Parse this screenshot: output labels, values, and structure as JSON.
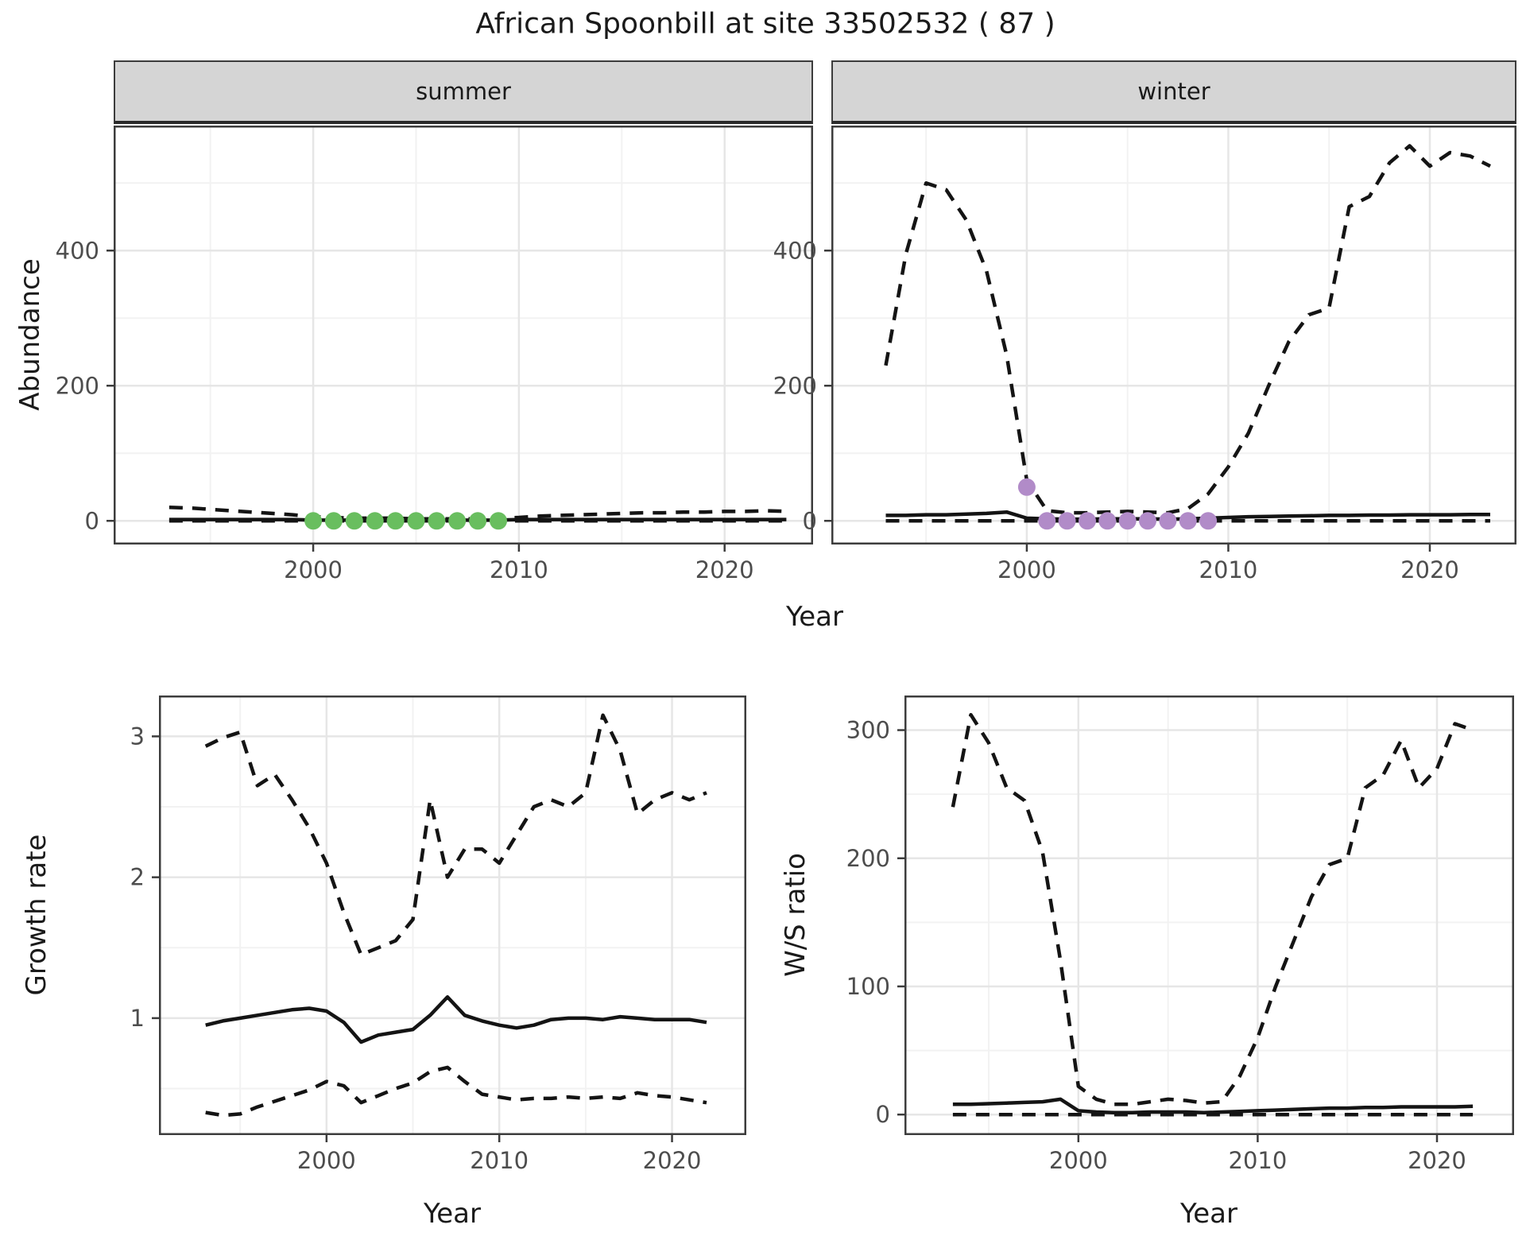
{
  "title": "African Spoonbill at site 33502532 ( 87 )",
  "colors": {
    "line": "#141414",
    "grid_major": "#e6e6e6",
    "grid_minor": "#f2f2f2",
    "panel_border": "#3c3c3c",
    "strip_bg": "#d5d5d5",
    "axis_text": "#4d4d4d",
    "title_text": "#1a1a1a",
    "point_summer": "#69be5f",
    "point_winter": "#b18bc8"
  },
  "chart_data": [
    {
      "id": "abundance-summer",
      "type": "line",
      "facet_label": "summer",
      "xlabel": "Year",
      "ylabel": "Abundance",
      "xlim": [
        1990.3,
        2024.3
      ],
      "ylim": [
        -35,
        585
      ],
      "xticks": [
        2000,
        2010,
        2020
      ],
      "xticks_minor": [
        1995,
        2005,
        2015
      ],
      "yticks": [
        0,
        200,
        400
      ],
      "yticks_minor": [
        100,
        300,
        500
      ],
      "grid": true,
      "x": [
        1993,
        1994,
        1995,
        1996,
        1997,
        1998,
        1999,
        2000,
        2001,
        2002,
        2003,
        2004,
        2005,
        2006,
        2007,
        2008,
        2009,
        2010,
        2011,
        2012,
        2013,
        2014,
        2015,
        2016,
        2017,
        2018,
        2019,
        2020,
        2021,
        2022,
        2023
      ],
      "series": [
        {
          "name": "estimate",
          "style": "solid",
          "values": [
            2,
            2,
            2,
            2,
            2,
            2,
            2,
            1,
            1,
            1,
            1,
            1,
            1,
            1,
            1,
            1,
            1,
            2,
            2,
            2,
            2,
            2,
            2,
            2,
            2,
            2,
            2,
            2,
            2,
            2,
            2
          ]
        },
        {
          "name": "upper CI",
          "style": "dashed",
          "values": [
            20,
            19,
            17,
            15,
            13,
            11,
            9,
            6,
            5,
            4,
            4,
            4,
            3,
            3,
            3,
            3,
            4,
            5,
            7,
            8,
            9,
            10,
            11,
            12,
            12,
            13,
            13,
            14,
            14,
            15,
            14
          ]
        },
        {
          "name": "lower CI",
          "style": "dashed",
          "values": [
            0,
            0,
            0,
            0,
            0,
            0,
            0,
            0,
            0,
            0,
            0,
            0,
            0,
            0,
            0,
            0,
            0,
            0,
            0,
            0,
            0,
            0,
            0,
            0,
            0,
            0,
            0,
            0,
            0,
            0,
            0
          ]
        }
      ],
      "points": {
        "name": "observed counts",
        "color": "#69be5f",
        "x": [
          2000,
          2001,
          2002,
          2003,
          2004,
          2005,
          2006,
          2007,
          2008,
          2009
        ],
        "y": [
          0,
          0,
          0,
          0,
          0,
          0,
          0,
          0,
          0,
          0
        ]
      }
    },
    {
      "id": "abundance-winter",
      "type": "line",
      "facet_label": "winter",
      "xlabel": "Year",
      "ylabel": "Abundance",
      "xlim": [
        1990.3,
        2024.3
      ],
      "ylim": [
        -35,
        585
      ],
      "xticks": [
        2000,
        2010,
        2020
      ],
      "xticks_minor": [
        1995,
        2005,
        2015
      ],
      "yticks": [
        0,
        200,
        400
      ],
      "yticks_minor": [
        100,
        300,
        500
      ],
      "grid": true,
      "x": [
        1993,
        1994,
        1995,
        1996,
        1997,
        1998,
        1999,
        2000,
        2001,
        2002,
        2003,
        2004,
        2005,
        2006,
        2007,
        2008,
        2009,
        2010,
        2011,
        2012,
        2013,
        2014,
        2015,
        2016,
        2017,
        2018,
        2019,
        2020,
        2021,
        2022,
        2023
      ],
      "series": [
        {
          "name": "estimate",
          "style": "solid",
          "values": [
            8,
            8,
            9,
            9,
            10,
            11,
            13,
            4,
            3,
            2.5,
            2.5,
            3,
            3,
            3,
            2.5,
            3,
            4,
            5,
            6,
            6.5,
            7,
            7.5,
            8,
            8,
            8.5,
            8.5,
            9,
            9,
            9,
            9.5,
            9.5
          ]
        },
        {
          "name": "upper CI",
          "style": "dashed",
          "values": [
            230,
            395,
            500,
            490,
            445,
            370,
            245,
            60,
            15,
            12,
            12,
            13,
            14,
            13,
            12,
            18,
            40,
            80,
            130,
            200,
            265,
            305,
            315,
            465,
            480,
            530,
            555,
            525,
            545,
            540,
            525
          ]
        },
        {
          "name": "lower CI",
          "style": "dashed",
          "values": [
            0,
            0,
            0,
            0,
            0,
            0,
            0,
            0,
            0,
            0,
            0,
            0,
            0,
            0,
            0,
            0,
            0,
            0,
            0,
            0,
            0,
            0,
            0,
            0,
            0,
            0,
            0,
            0,
            0,
            0,
            0
          ]
        }
      ],
      "points": {
        "name": "observed counts",
        "color": "#b18bc8",
        "x": [
          2000,
          2001,
          2002,
          2003,
          2004,
          2005,
          2006,
          2007,
          2008,
          2009
        ],
        "y": [
          50,
          0,
          0,
          0,
          0,
          0,
          0,
          0,
          0,
          0
        ]
      }
    },
    {
      "id": "growth-rate",
      "type": "line",
      "facet_label": "",
      "xlabel": "Year",
      "ylabel": "Growth rate",
      "xlim": [
        1990.3,
        2024.3
      ],
      "ylim": [
        0.17,
        3.29
      ],
      "xticks": [
        2000,
        2010,
        2020
      ],
      "xticks_minor": [
        1995,
        2005,
        2015
      ],
      "yticks": [
        1,
        2,
        3
      ],
      "yticks_minor": [
        0.5,
        1.5,
        2.5
      ],
      "grid": true,
      "x": [
        1993,
        1994,
        1995,
        1996,
        1997,
        1998,
        1999,
        2000,
        2001,
        2002,
        2003,
        2004,
        2005,
        2006,
        2007,
        2008,
        2009,
        2010,
        2011,
        2012,
        2013,
        2014,
        2015,
        2016,
        2017,
        2018,
        2019,
        2020,
        2021,
        2022
      ],
      "series": [
        {
          "name": "estimate",
          "style": "solid",
          "values": [
            0.95,
            0.98,
            1.0,
            1.02,
            1.04,
            1.06,
            1.07,
            1.05,
            0.97,
            0.83,
            0.88,
            0.9,
            0.92,
            1.02,
            1.15,
            1.02,
            0.98,
            0.95,
            0.93,
            0.95,
            0.99,
            1.0,
            1.0,
            0.99,
            1.01,
            1.0,
            0.99,
            0.99,
            0.99,
            0.97
          ]
        },
        {
          "name": "upper CI",
          "style": "dashed",
          "values": [
            2.93,
            2.99,
            3.03,
            2.65,
            2.73,
            2.55,
            2.35,
            2.1,
            1.75,
            1.45,
            1.5,
            1.55,
            1.7,
            2.55,
            2.0,
            2.2,
            2.2,
            2.1,
            2.3,
            2.5,
            2.55,
            2.5,
            2.6,
            3.15,
            2.9,
            2.45,
            2.55,
            2.6,
            2.55,
            2.6
          ]
        },
        {
          "name": "lower CI",
          "style": "dashed",
          "values": [
            0.33,
            0.31,
            0.32,
            0.37,
            0.41,
            0.45,
            0.49,
            0.55,
            0.52,
            0.4,
            0.45,
            0.5,
            0.54,
            0.62,
            0.65,
            0.55,
            0.46,
            0.44,
            0.42,
            0.43,
            0.43,
            0.44,
            0.43,
            0.44,
            0.43,
            0.47,
            0.45,
            0.44,
            0.42,
            0.4
          ]
        }
      ],
      "points": null
    },
    {
      "id": "ws-ratio",
      "type": "line",
      "facet_label": "",
      "xlabel": "Year",
      "ylabel": "W/S ratio",
      "xlim": [
        1990.3,
        2024.3
      ],
      "ylim": [
        -16,
        327
      ],
      "xticks": [
        2000,
        2010,
        2020
      ],
      "xticks_minor": [
        1995,
        2005,
        2015
      ],
      "yticks": [
        0,
        100,
        200,
        300
      ],
      "yticks_minor": [
        50,
        150,
        250
      ],
      "grid": true,
      "x": [
        1993,
        1994,
        1995,
        1996,
        1997,
        1998,
        1999,
        2000,
        2001,
        2002,
        2003,
        2004,
        2005,
        2006,
        2007,
        2008,
        2009,
        2010,
        2011,
        2012,
        2013,
        2014,
        2015,
        2016,
        2017,
        2018,
        2019,
        2020,
        2021,
        2022
      ],
      "series": [
        {
          "name": "estimate",
          "style": "solid",
          "values": [
            8,
            8,
            8.5,
            9,
            9.5,
            10,
            12,
            3,
            2,
            1.5,
            1.5,
            2,
            2,
            2,
            1.5,
            2,
            2.5,
            3,
            3.5,
            4,
            4.5,
            5,
            5,
            5.5,
            5.5,
            6,
            6,
            6,
            6,
            6.5
          ]
        },
        {
          "name": "upper CI",
          "style": "dashed",
          "values": [
            240,
            312,
            290,
            255,
            245,
            205,
            120,
            22,
            12,
            8,
            8,
            10,
            12,
            11,
            9,
            10,
            30,
            60,
            100,
            135,
            170,
            195,
            200,
            255,
            265,
            292,
            255,
            270,
            305,
            300
          ]
        },
        {
          "name": "lower CI",
          "style": "dashed",
          "values": [
            0,
            0,
            0,
            0,
            0,
            0,
            0,
            0,
            0,
            0,
            0,
            0,
            0,
            0,
            0,
            0,
            0,
            0,
            0,
            0,
            0,
            0,
            0,
            0,
            0,
            0,
            0,
            0,
            0,
            0
          ]
        }
      ],
      "points": null
    }
  ]
}
